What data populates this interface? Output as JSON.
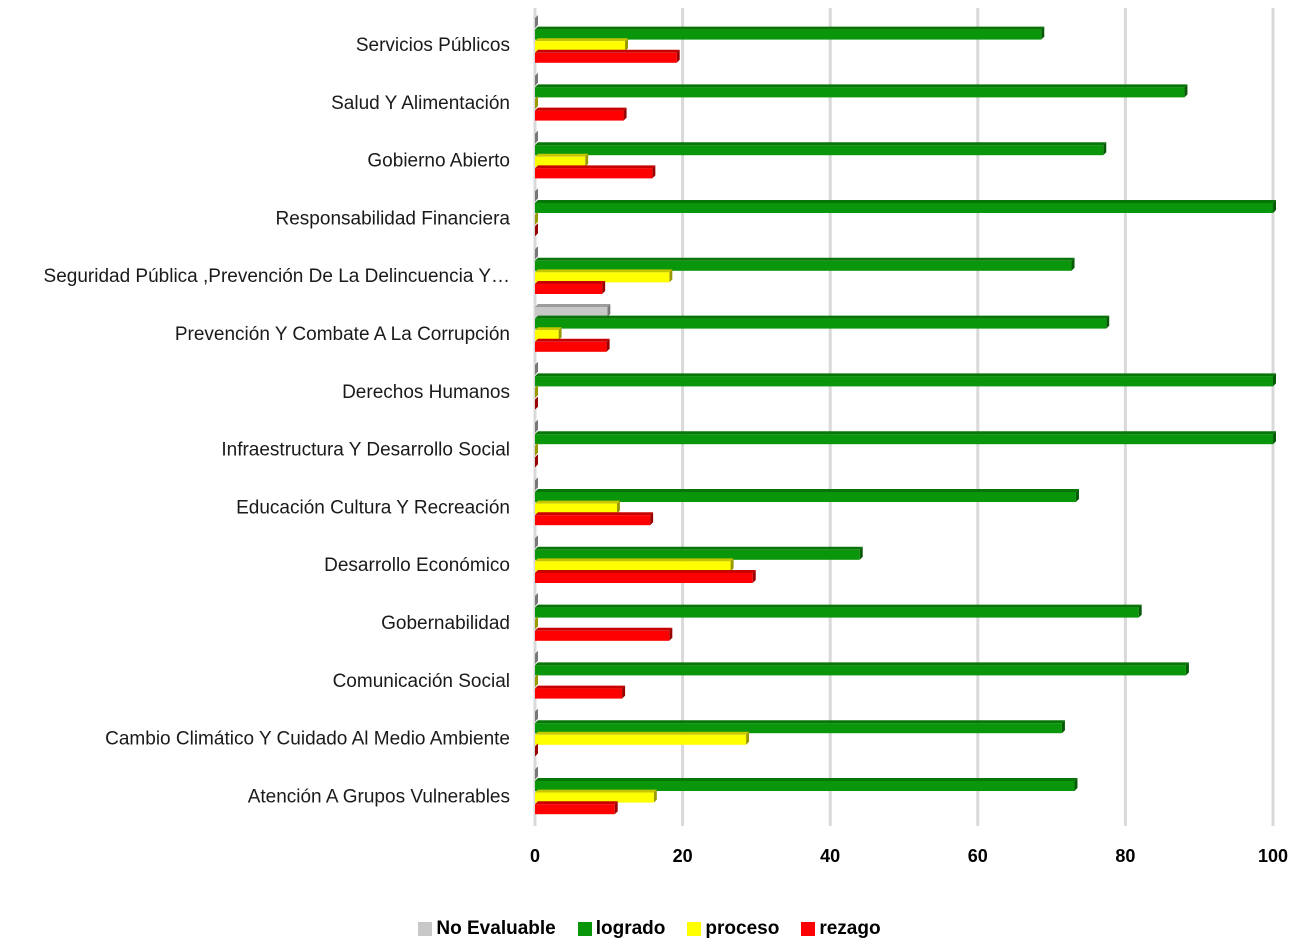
{
  "chart_data": {
    "type": "bar",
    "orientation": "horizontal",
    "categories": [
      "Servicios Públicos",
      "Salud Y Alimentación",
      "Gobierno Abierto",
      "Responsabilidad Financiera",
      "Seguridad Pública ,Prevención De La Delincuencia Y…",
      "Prevención Y Combate A La Corrupción",
      "Derechos Humanos",
      "Infraestructura Y Desarrollo Social",
      "Educación Cultura Y Recreación",
      "Desarrollo Económico",
      "Gobernabilidad",
      "Comunicación Social",
      "Cambio Climático Y Cuidado Al Medio Ambiente",
      "Atención A Grupos Vulnerables"
    ],
    "series": [
      {
        "name": "No Evaluable",
        "color": "#c8c8c8",
        "values": [
          0,
          0,
          0,
          0,
          0,
          9.8,
          0,
          0,
          0,
          0,
          0,
          0,
          0,
          0
        ]
      },
      {
        "name": "logrado",
        "color": "#0a960a",
        "values": [
          68.6,
          88,
          77,
          100,
          72.7,
          77.4,
          100,
          100,
          73.3,
          44,
          81.8,
          88.2,
          71.4,
          73.1
        ]
      },
      {
        "name": "proceso",
        "color": "#ffff00",
        "values": [
          12.2,
          0,
          6.8,
          0,
          18.2,
          3.2,
          0,
          0,
          11.1,
          26.5,
          0,
          0,
          28.6,
          16.1
        ]
      },
      {
        "name": "rezago",
        "color": "#ff0000",
        "values": [
          19.2,
          12,
          15.9,
          0,
          9.1,
          9.7,
          0,
          0,
          15.6,
          29.5,
          18.2,
          11.8,
          0,
          10.8
        ]
      }
    ],
    "x_ticks": [
      "0",
      "20",
      "40",
      "60",
      "80",
      "100"
    ],
    "xlim": [
      0,
      100
    ],
    "grid": true,
    "legend_position": "bottom",
    "title": "",
    "xlabel": "",
    "ylabel": ""
  }
}
